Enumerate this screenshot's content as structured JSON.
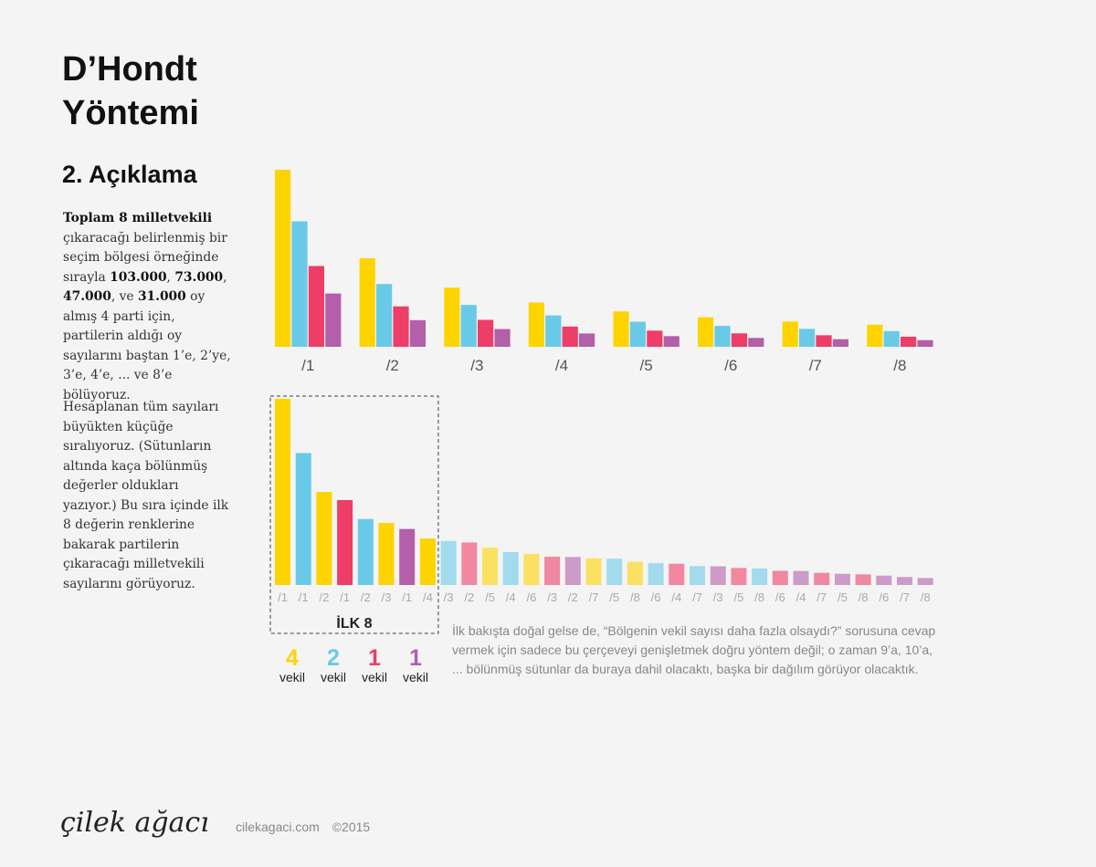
{
  "page": {
    "title_line1": "D’Hondt",
    "title_line2": "Yöntemi",
    "subtitle": "2. Açıklama",
    "para1": {
      "t1": "Toplam 8 milletvekili",
      "t2": " çıkaracağı belirlenmiş bir seçim bölgesi örneğinde sırayla ",
      "v1": "103.000",
      "s1": ", ",
      "v2": "73.000",
      "s2": ", ",
      "v3": "47.000",
      "s3": ", ve ",
      "v4": "31.000",
      "t3": " oy almış 4 parti için, partilerin aldığı oy sayılarını baştan 1’e, 2’ye, 3’e, 4’e, ... ve 8’e bölüyoruz."
    },
    "para2": "Hesaplanan tüm sayıları büyükten küçüğe sıralıyoruz. (Sütunların altında kaça bölünmüş değerler oldukları yazıyor.) Bu sıra içinde ilk 8 değerin renklerine bakarak partilerin çıkaracağı milletvekili sayılarını görüyoruz.",
    "note": "İlk bakışta doğal gelse de, “Bölgenin vekil sayısı daha fazla olsaydı?” sorusuna cevap vermek için sadece bu çerçeveyi genişletmek doğru yöntem değil; o zaman 9’a, 10’a, ... bölünmüş sütunlar da buraya dahil olacaktı, başka bir dağılım görüyor olacaktık.",
    "logo": "çilek ağacı",
    "site": "cilekagaci.com",
    "copyright": "©2015"
  },
  "colors": {
    "parties": [
      "#FDD400",
      "#69CAE8",
      "#EE3D67",
      "#B35FAA"
    ],
    "divisor_label": "#555555",
    "sorted_label": "#aaaaaa",
    "frame": "#666666"
  },
  "chart_data": [
    {
      "type": "bar",
      "categories": [
        "/1",
        "/2",
        "/3",
        "/4",
        "/5",
        "/6",
        "/7",
        "/8"
      ],
      "parties_votes": [
        103000,
        73000,
        47000,
        31000
      ],
      "series": [
        {
          "values": [
            103000,
            51500,
            34333,
            25750,
            20600,
            17167,
            14714,
            12875
          ]
        },
        {
          "values": [
            73000,
            36500,
            24333,
            18250,
            14600,
            12167,
            10429,
            9125
          ]
        },
        {
          "values": [
            47000,
            23500,
            15667,
            11750,
            9400,
            7833,
            6714,
            5875
          ]
        },
        {
          "values": [
            31000,
            15500,
            10333,
            7750,
            6200,
            5167,
            4429,
            3875
          ]
        }
      ]
    },
    {
      "type": "bar",
      "sorted": [
        {
          "label": "/1",
          "party": 0,
          "value": 103000
        },
        {
          "label": "/1",
          "party": 1,
          "value": 73000
        },
        {
          "label": "/2",
          "party": 0,
          "value": 51500
        },
        {
          "label": "/1",
          "party": 2,
          "value": 47000
        },
        {
          "label": "/2",
          "party": 1,
          "value": 36500
        },
        {
          "label": "/3",
          "party": 0,
          "value": 34333
        },
        {
          "label": "/1",
          "party": 3,
          "value": 31000
        },
        {
          "label": "/4",
          "party": 0,
          "value": 25750
        },
        {
          "label": "/3",
          "party": 1,
          "value": 24333
        },
        {
          "label": "/2",
          "party": 2,
          "value": 23500
        },
        {
          "label": "/5",
          "party": 0,
          "value": 20600
        },
        {
          "label": "/4",
          "party": 1,
          "value": 18250
        },
        {
          "label": "/6",
          "party": 0,
          "value": 17167
        },
        {
          "label": "/3",
          "party": 2,
          "value": 15667
        },
        {
          "label": "/2",
          "party": 3,
          "value": 15500
        },
        {
          "label": "/7",
          "party": 0,
          "value": 14714
        },
        {
          "label": "/5",
          "party": 1,
          "value": 14600
        },
        {
          "label": "/8",
          "party": 0,
          "value": 12875
        },
        {
          "label": "/6",
          "party": 1,
          "value": 12167
        },
        {
          "label": "/4",
          "party": 2,
          "value": 11750
        },
        {
          "label": "/7",
          "party": 1,
          "value": 10429
        },
        {
          "label": "/3",
          "party": 3,
          "value": 10333
        },
        {
          "label": "/5",
          "party": 2,
          "value": 9400
        },
        {
          "label": "/8",
          "party": 1,
          "value": 9125
        },
        {
          "label": "/6",
          "party": 2,
          "value": 7833
        },
        {
          "label": "/4",
          "party": 3,
          "value": 7750
        },
        {
          "label": "/7",
          "party": 2,
          "value": 6714
        },
        {
          "label": "/5",
          "party": 3,
          "value": 6200
        },
        {
          "label": "/8",
          "party": 2,
          "value": 5875
        },
        {
          "label": "/6",
          "party": 3,
          "value": 5167
        },
        {
          "label": "/7",
          "party": 3,
          "value": 4429
        },
        {
          "label": "/8",
          "party": 3,
          "value": 3875
        }
      ],
      "highlight_count": 8,
      "highlight_label": "İLK 8",
      "seats": [
        {
          "count": "4",
          "unit": "vekil"
        },
        {
          "count": "2",
          "unit": "vekil"
        },
        {
          "count": "1",
          "unit": "vekil"
        },
        {
          "count": "1",
          "unit": "vekil"
        }
      ]
    }
  ]
}
